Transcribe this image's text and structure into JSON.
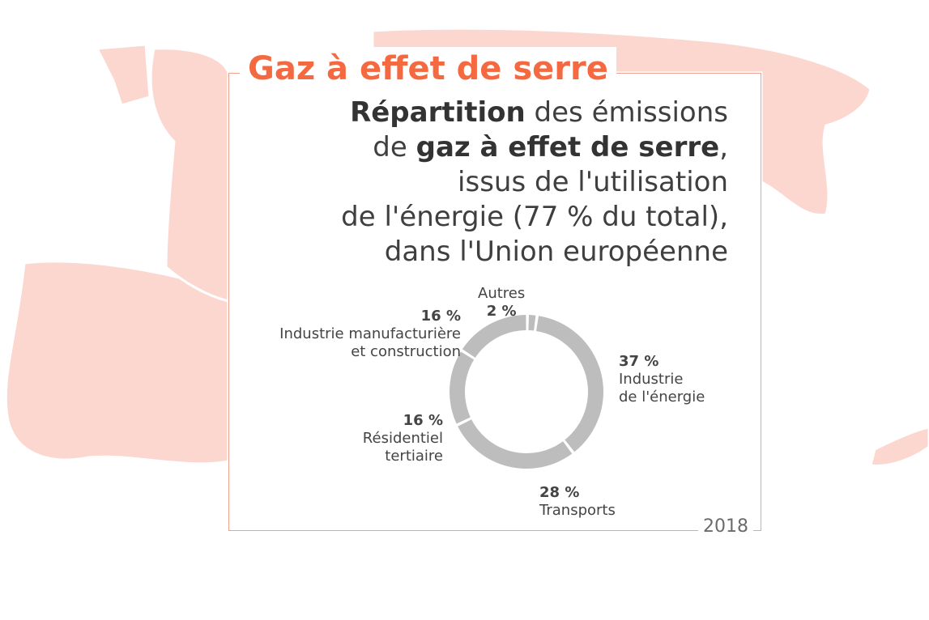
{
  "header": {
    "title": "Gaz à effet de serre",
    "subtitle_lines": [
      {
        "bold": "Répartition",
        "rest": " des émissions"
      },
      {
        "pre": "de ",
        "bold": "gaz à effet de serre",
        "post": ","
      },
      {
        "text": "issus de l'utilisation"
      },
      {
        "text": "de l'énergie (77 % du total),"
      },
      {
        "text": "dans l'Union européenne"
      }
    ],
    "year": "2018"
  },
  "colors": {
    "accent": "#f4693f",
    "frame": "#f0a08e",
    "map": "#fcd7cf",
    "donut": "#bdbdbd"
  },
  "chart_data": {
    "type": "pie",
    "title": "Répartition des émissions de gaz à effet de serre, issus de l'utilisation de l'énergie (77 % du total), dans l'Union européenne",
    "year": "2018",
    "slices": [
      {
        "label": "Industrie de l'énergie",
        "value": 37,
        "text": "37 %",
        "name_lines": [
          "Industrie",
          "de l'énergie"
        ]
      },
      {
        "label": "Transports",
        "value": 28,
        "text": "28 %",
        "name_lines": [
          "Transports"
        ]
      },
      {
        "label": "Résidentiel tertiaire",
        "value": 16,
        "text": "16 %",
        "name_lines": [
          "Résidentiel",
          "tertiaire"
        ]
      },
      {
        "label": "Industrie manufacturière et construction",
        "value": 16,
        "text": "16 %",
        "name_lines": [
          "Industrie manufacturière",
          "et construction"
        ]
      },
      {
        "label": "Autres",
        "value": 2,
        "text": "2 %",
        "name_lines": [
          "Autres"
        ]
      }
    ]
  }
}
